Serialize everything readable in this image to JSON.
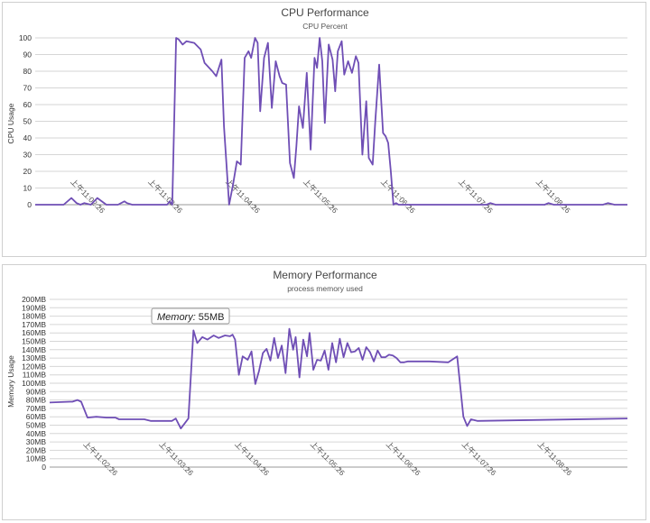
{
  "chart_data": [
    {
      "type": "line",
      "title": "CPU Performance",
      "subtitle": "CPU Percent",
      "ylabel": "CPU Usage",
      "ylim": [
        0,
        100
      ],
      "yticks": [
        0,
        10,
        20,
        30,
        40,
        50,
        60,
        70,
        80,
        90,
        100
      ],
      "ytick_labels": [
        "0",
        "10",
        "20",
        "30",
        "40",
        "50",
        "60",
        "70",
        "80",
        "90",
        "100"
      ],
      "xlim": [
        "11:01:36",
        "11:09:14"
      ],
      "xticks": [
        "11:02:26",
        "11:03:26",
        "11:04:26",
        "11:05:26",
        "11:06:26",
        "11:07:26",
        "11:08:26"
      ],
      "xtick_labels": [
        "上午11:02:26",
        "上午11:03:26",
        "上午11:04:26",
        "上午11:05:26",
        "上午11:06:26",
        "上午11:07:26",
        "上午11:08:26"
      ],
      "grid": true,
      "series": [
        {
          "color": "#6f4eb5",
          "x": [
            "11:01:36",
            "11:01:52",
            "11:01:55",
            "11:01:58",
            "11:02:04",
            "11:02:08",
            "11:02:11",
            "11:02:14",
            "11:02:19",
            "11:02:24",
            "11:02:31",
            "11:02:34",
            "11:02:40",
            "11:02:45",
            "11:02:47",
            "11:02:51",
            "11:02:54",
            "11:03:18",
            "11:03:20",
            "11:03:22",
            "11:03:25",
            "11:03:27",
            "11:03:30",
            "11:03:33",
            "11:03:39",
            "11:03:44",
            "11:03:47",
            "11:03:53",
            "11:03:56",
            "11:04:00",
            "11:04:02",
            "11:04:06",
            "11:04:09",
            "11:04:12",
            "11:04:15",
            "11:04:18",
            "11:04:21",
            "11:04:23",
            "11:04:26",
            "11:04:28",
            "11:04:30",
            "11:04:33",
            "11:04:36",
            "11:04:39",
            "11:04:42",
            "11:04:45",
            "11:04:47",
            "11:04:50",
            "11:04:53",
            "11:04:56",
            "11:04:58",
            "11:05:00",
            "11:05:03",
            "11:05:06",
            "11:05:09",
            "11:05:12",
            "11:05:14",
            "11:05:16",
            "11:05:18",
            "11:05:20",
            "11:05:23",
            "11:05:26",
            "11:05:28",
            "11:05:30",
            "11:05:33",
            "11:05:35",
            "11:05:38",
            "11:05:41",
            "11:05:44",
            "11:05:46",
            "11:05:49",
            "11:05:52",
            "11:05:54",
            "11:05:57",
            "11:05:59",
            "11:06:02",
            "11:06:05",
            "11:06:07",
            "11:06:09",
            "11:06:11",
            "11:06:13",
            "11:06:15",
            "11:06:17",
            "11:06:20",
            "11:06:22",
            "11:06:24",
            "11:06:27",
            "11:06:30",
            "11:06:33",
            "11:06:45",
            "11:07:25",
            "11:07:28",
            "11:07:32",
            "11:08:10",
            "11:08:13",
            "11:08:17",
            "11:08:55",
            "11:08:59",
            "11:09:04",
            "11:09:14"
          ],
          "values": [
            0,
            0,
            0,
            0,
            4,
            1,
            0,
            1,
            0,
            4,
            0,
            0,
            0,
            2,
            1,
            0,
            0,
            0,
            2,
            0,
            100,
            99,
            96,
            98,
            97,
            93,
            85,
            80,
            77,
            87,
            47,
            0,
            12,
            26,
            24,
            88,
            92,
            88,
            100,
            97,
            56,
            88,
            97,
            58,
            86,
            77,
            73,
            72,
            25,
            16,
            35,
            59,
            46,
            79,
            33,
            88,
            82,
            100,
            86,
            49,
            96,
            87,
            68,
            92,
            98,
            78,
            86,
            79,
            89,
            85,
            30,
            62,
            28,
            24,
            50,
            84,
            43,
            41,
            37,
            20,
            0,
            1,
            0,
            0,
            0,
            0,
            0,
            0,
            0,
            0,
            0,
            1,
            0,
            0,
            1,
            0,
            0,
            1,
            0,
            0
          ]
        }
      ]
    },
    {
      "type": "line",
      "title": "Memory Performance",
      "subtitle": "process memory used",
      "ylabel": "Memory Usage",
      "ylim": [
        0,
        200
      ],
      "yticks": [
        0,
        10,
        20,
        30,
        40,
        50,
        60,
        70,
        80,
        90,
        100,
        110,
        120,
        130,
        140,
        150,
        160,
        170,
        180,
        190,
        200
      ],
      "ytick_labels": [
        "0",
        "10MB",
        "20MB",
        "30MB",
        "40MB",
        "50MB",
        "60MB",
        "70MB",
        "80MB",
        "90MB",
        "100MB",
        "110MB",
        "120MB",
        "130MB",
        "140MB",
        "150MB",
        "160MB",
        "170MB",
        "180MB",
        "190MB",
        "200MB"
      ],
      "xlim": [
        "11:01:36",
        "11:09:14"
      ],
      "xticks": [
        "11:02:26",
        "11:03:26",
        "11:04:26",
        "11:05:26",
        "11:06:26",
        "11:07:26",
        "11:08:26"
      ],
      "xtick_labels": [
        "上午11:02:26",
        "上午11:03:26",
        "上午11:04:26",
        "上午11:05:26",
        "上午11:06:26",
        "上午11:07:26",
        "上午11:08:26"
      ],
      "grid": true,
      "tooltip": {
        "label": "Memory:",
        "value": "55MB"
      },
      "series": [
        {
          "color": "#6f4eb5",
          "x": [
            "11:01:36",
            "11:01:52",
            "11:01:54",
            "11:01:58",
            "11:02:01",
            "11:02:06",
            "11:02:13",
            "11:02:21",
            "11:02:28",
            "11:02:31",
            "11:02:37",
            "11:02:51",
            "11:02:56",
            "11:03:02",
            "11:03:08",
            "11:03:13",
            "11:03:16",
            "11:03:20",
            "11:03:26",
            "11:03:30",
            "11:03:33",
            "11:03:37",
            "11:03:41",
            "11:03:46",
            "11:03:50",
            "11:03:55",
            "11:03:59",
            "11:04:01",
            "11:04:03",
            "11:04:06",
            "11:04:09",
            "11:04:13",
            "11:04:16",
            "11:04:19",
            "11:04:22",
            "11:04:25",
            "11:04:28",
            "11:04:31",
            "11:04:34",
            "11:04:37",
            "11:04:40",
            "11:04:43",
            "11:04:46",
            "11:04:49",
            "11:04:51",
            "11:04:54",
            "11:04:57",
            "11:05:00",
            "11:05:02",
            "11:05:05",
            "11:05:08",
            "11:05:11",
            "11:05:14",
            "11:05:17",
            "11:05:20",
            "11:05:23",
            "11:05:26",
            "11:05:29",
            "11:05:32",
            "11:05:35",
            "11:05:38",
            "11:05:41",
            "11:05:44",
            "11:05:47",
            "11:05:50",
            "11:05:53",
            "11:05:56",
            "11:05:59",
            "11:06:02",
            "11:06:05",
            "11:06:08",
            "11:06:11",
            "11:06:14",
            "11:06:17",
            "11:06:20",
            "11:06:23",
            "11:06:28",
            "11:06:37",
            "11:06:52",
            "11:06:59",
            "11:07:04",
            "11:07:07",
            "11:07:10",
            "11:07:15",
            "11:09:14"
          ],
          "values": [
            77,
            78,
            78,
            80,
            78,
            59,
            60,
            59,
            59,
            57,
            57,
            57,
            55,
            55,
            55,
            55,
            58,
            46,
            58,
            163,
            148,
            155,
            152,
            157,
            154,
            157,
            156,
            158,
            152,
            110,
            132,
            128,
            138,
            99,
            115,
            136,
            141,
            127,
            154,
            130,
            145,
            112,
            165,
            140,
            155,
            107,
            152,
            132,
            160,
            116,
            128,
            127,
            139,
            116,
            148,
            125,
            153,
            131,
            148,
            137,
            138,
            142,
            128,
            143,
            137,
            126,
            139,
            131,
            131,
            134,
            133,
            130,
            125,
            125,
            126,
            126,
            126,
            126,
            125,
            132,
            60,
            49,
            57,
            55,
            58
          ]
        }
      ]
    }
  ]
}
